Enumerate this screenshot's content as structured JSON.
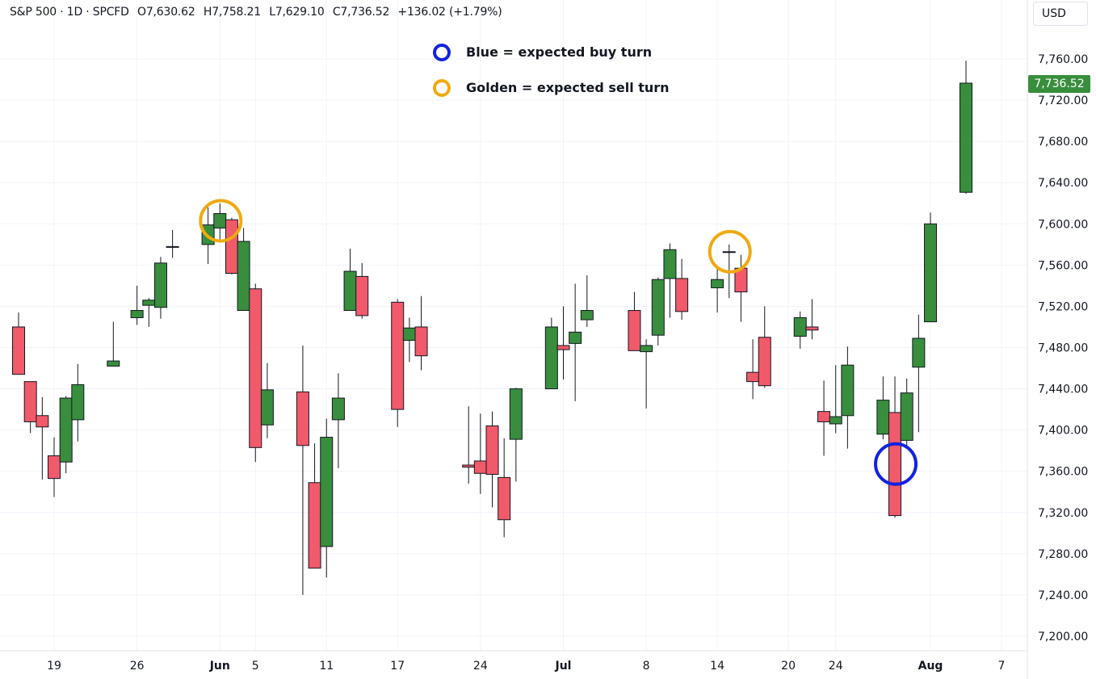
{
  "header": {
    "symbol": "S&P 500 · 1D · SPCFD",
    "open_label": "O",
    "open": "7,630.62",
    "high_label": "H",
    "high": "7,758.21",
    "low_label": "L",
    "low": "7,629.10",
    "close_label": "C",
    "close": "7,736.52",
    "change": "+136.02 (+1.79%)"
  },
  "currency": "USD",
  "last_price_tag": "7,736.52",
  "legend": [
    {
      "label": "Blue = expected buy turn",
      "color": "#1222e0"
    },
    {
      "label": "Golden = expected sell turn",
      "color": "#f0a911"
    }
  ],
  "colors": {
    "up": "#388e3c",
    "down": "#f05a6a",
    "buy_circle": "#1222e0",
    "sell_circle": "#f0a911",
    "text": "#131722",
    "grid": "#f0f3fa"
  },
  "chart_data": {
    "type": "candlestick",
    "title": "S&P 500 · 1D · SPCFD",
    "ylim": [
      7200,
      7760
    ],
    "y_ticks": [
      "7,200.00",
      "7,240.00",
      "7,280.00",
      "7,320.00",
      "7,360.00",
      "7,400.00",
      "7,440.00",
      "7,480.00",
      "7,520.00",
      "7,560.00",
      "7,600.00",
      "7,640.00",
      "7,680.00",
      "7,720.00",
      "7,760.00"
    ],
    "x_ticks": [
      {
        "label": "19",
        "date": "2025-05-19"
      },
      {
        "label": "26",
        "date": "2025-05-26"
      },
      {
        "label": "Jun",
        "date": "2025-06-02"
      },
      {
        "label": "5",
        "date": "2025-06-05"
      },
      {
        "label": "11",
        "date": "2025-06-11"
      },
      {
        "label": "17",
        "date": "2025-06-17"
      },
      {
        "label": "24",
        "date": "2025-06-24"
      },
      {
        "label": "Jul",
        "date": "2025-07-01"
      },
      {
        "label": "8",
        "date": "2025-07-08"
      },
      {
        "label": "14",
        "date": "2025-07-14"
      },
      {
        "label": "20",
        "date": "2025-07-20"
      },
      {
        "label": "24",
        "date": "2025-07-24"
      },
      {
        "label": "Aug",
        "date": "2025-08-01"
      },
      {
        "label": "7",
        "date": "2025-08-07"
      }
    ],
    "candles": [
      {
        "date": "2025-05-16",
        "o": 7500,
        "h": 7514,
        "l": 7454,
        "c": 7454
      },
      {
        "date": "2025-05-17",
        "o": 7447,
        "h": 7447,
        "l": 7397,
        "c": 7408
      },
      {
        "date": "2025-05-18",
        "o": 7414,
        "h": 7432,
        "l": 7352,
        "c": 7403
      },
      {
        "date": "2025-05-19",
        "o": 7375,
        "h": 7393,
        "l": 7335,
        "c": 7353
      },
      {
        "date": "2025-05-20",
        "o": 7369,
        "h": 7433,
        "l": 7358,
        "c": 7431
      },
      {
        "date": "2025-05-21",
        "o": 7410,
        "h": 7464,
        "l": 7389,
        "c": 7444
      },
      {
        "date": "2025-05-24",
        "o": 7462,
        "h": 7505,
        "l": 7462,
        "c": 7467
      },
      {
        "date": "2025-05-26",
        "o": 7509,
        "h": 7540,
        "l": 7502,
        "c": 7516
      },
      {
        "date": "2025-05-27",
        "o": 7521,
        "h": 7528,
        "l": 7500,
        "c": 7526
      },
      {
        "date": "2025-05-28",
        "o": 7519,
        "h": 7568,
        "l": 7508,
        "c": 7562
      },
      {
        "date": "2025-05-29",
        "o": 7578,
        "h": 7594,
        "l": 7567,
        "c": 7578
      },
      {
        "date": "2025-06-01",
        "o": 7580,
        "h": 7616,
        "l": 7561,
        "c": 7599
      },
      {
        "date": "2025-06-02",
        "o": 7596,
        "h": 7620,
        "l": 7582,
        "c": 7610
      },
      {
        "date": "2025-06-03",
        "o": 7604,
        "h": 7606,
        "l": 7551,
        "c": 7552
      },
      {
        "date": "2025-06-04",
        "o": 7516,
        "h": 7596,
        "l": 7516,
        "c": 7583
      },
      {
        "date": "2025-06-05",
        "o": 7537,
        "h": 7542,
        "l": 7369,
        "c": 7383
      },
      {
        "date": "2025-06-06",
        "o": 7405,
        "h": 7465,
        "l": 7392,
        "c": 7439
      },
      {
        "date": "2025-06-09",
        "o": 7437,
        "h": 7482,
        "l": 7240,
        "c": 7385
      },
      {
        "date": "2025-06-10",
        "o": 7349,
        "h": 7387,
        "l": 7266,
        "c": 7266
      },
      {
        "date": "2025-06-11",
        "o": 7287,
        "h": 7411,
        "l": 7257,
        "c": 7393
      },
      {
        "date": "2025-06-12",
        "o": 7410,
        "h": 7455,
        "l": 7363,
        "c": 7431
      },
      {
        "date": "2025-06-13",
        "o": 7516,
        "h": 7576,
        "l": 7516,
        "c": 7554
      },
      {
        "date": "2025-06-14",
        "o": 7549,
        "h": 7562,
        "l": 7508,
        "c": 7511
      },
      {
        "date": "2025-06-17",
        "o": 7524,
        "h": 7527,
        "l": 7403,
        "c": 7420
      },
      {
        "date": "2025-06-18",
        "o": 7487,
        "h": 7509,
        "l": 7466,
        "c": 7499
      },
      {
        "date": "2025-06-19",
        "o": 7500,
        "h": 7530,
        "l": 7458,
        "c": 7472
      },
      {
        "date": "2025-06-23",
        "o": 7366,
        "h": 7423,
        "l": 7348,
        "c": 7364
      },
      {
        "date": "2025-06-24",
        "o": 7370,
        "h": 7416,
        "l": 7338,
        "c": 7358
      },
      {
        "date": "2025-06-25",
        "o": 7404,
        "h": 7418,
        "l": 7325,
        "c": 7357
      },
      {
        "date": "2025-06-26",
        "o": 7354,
        "h": 7392,
        "l": 7296,
        "c": 7313
      },
      {
        "date": "2025-06-27",
        "o": 7391,
        "h": 7441,
        "l": 7350,
        "c": 7440
      },
      {
        "date": "2025-06-30",
        "o": 7440,
        "h": 7509,
        "l": 7440,
        "c": 7500
      },
      {
        "date": "2025-07-01",
        "o": 7482,
        "h": 7520,
        "l": 7449,
        "c": 7478
      },
      {
        "date": "2025-07-02",
        "o": 7484,
        "h": 7542,
        "l": 7428,
        "c": 7495
      },
      {
        "date": "2025-07-03",
        "o": 7507,
        "h": 7550,
        "l": 7500,
        "c": 7516
      },
      {
        "date": "2025-07-07",
        "o": 7516,
        "h": 7534,
        "l": 7477,
        "c": 7477
      },
      {
        "date": "2025-07-08",
        "o": 7476,
        "h": 7488,
        "l": 7421,
        "c": 7482
      },
      {
        "date": "2025-07-09",
        "o": 7492,
        "h": 7548,
        "l": 7482,
        "c": 7546
      },
      {
        "date": "2025-07-10",
        "o": 7547,
        "h": 7581,
        "l": 7509,
        "c": 7575
      },
      {
        "date": "2025-07-11",
        "o": 7547,
        "h": 7566,
        "l": 7507,
        "c": 7515
      },
      {
        "date": "2025-07-14",
        "o": 7538,
        "h": 7557,
        "l": 7514,
        "c": 7546
      },
      {
        "date": "2025-07-15",
        "o": 7573,
        "h": 7580,
        "l": 7528,
        "c": 7573
      },
      {
        "date": "2025-07-16",
        "o": 7557,
        "h": 7570,
        "l": 7505,
        "c": 7534
      },
      {
        "date": "2025-07-17",
        "o": 7456,
        "h": 7488,
        "l": 7430,
        "c": 7447
      },
      {
        "date": "2025-07-18",
        "o": 7490,
        "h": 7520,
        "l": 7441,
        "c": 7443
      },
      {
        "date": "2025-07-21",
        "o": 7491,
        "h": 7515,
        "l": 7479,
        "c": 7509
      },
      {
        "date": "2025-07-22",
        "o": 7500,
        "h": 7527,
        "l": 7488,
        "c": 7497
      },
      {
        "date": "2025-07-23",
        "o": 7418,
        "h": 7448,
        "l": 7375,
        "c": 7408
      },
      {
        "date": "2025-07-24",
        "o": 7406,
        "h": 7463,
        "l": 7397,
        "c": 7413
      },
      {
        "date": "2025-07-25",
        "o": 7414,
        "h": 7481,
        "l": 7382,
        "c": 7463
      },
      {
        "date": "2025-07-28",
        "o": 7396,
        "h": 7452,
        "l": 7391,
        "c": 7429
      },
      {
        "date": "2025-07-29",
        "o": 7417,
        "h": 7452,
        "l": 7315,
        "c": 7317
      },
      {
        "date": "2025-07-30",
        "o": 7390,
        "h": 7450,
        "l": 7383,
        "c": 7436
      },
      {
        "date": "2025-07-31",
        "o": 7461,
        "h": 7512,
        "l": 7398,
        "c": 7489
      },
      {
        "date": "2025-08-01",
        "o": 7505,
        "h": 7611,
        "l": 7505,
        "c": 7600
      },
      {
        "date": "2025-08-04",
        "o": 7630.62,
        "h": 7758.21,
        "l": 7629.1,
        "c": 7736.52
      }
    ],
    "sell_turn_markers": [
      "2025-06-02",
      "2025-07-15"
    ],
    "buy_turn_markers": [
      "2025-07-29"
    ]
  }
}
